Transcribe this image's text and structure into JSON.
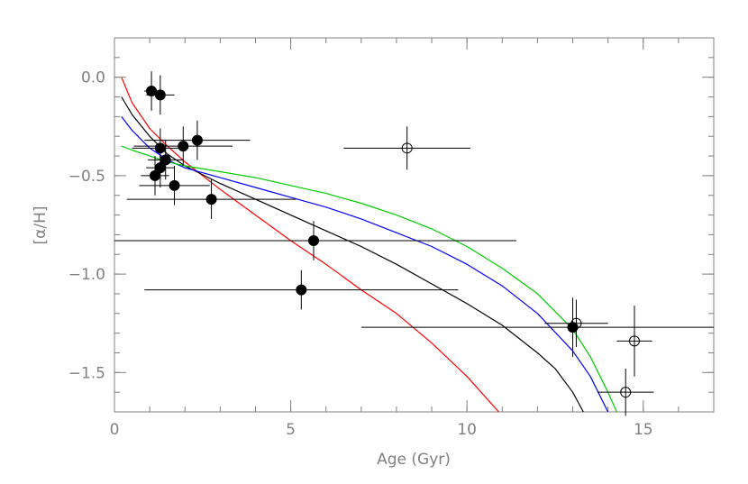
{
  "chart_data": {
    "type": "scatter",
    "xlabel": "Age (Gyr)",
    "ylabel": "[α/H]",
    "xlim": [
      0,
      17
    ],
    "ylim": [
      -1.7,
      0.2
    ],
    "xticks": [
      0,
      5,
      10,
      15
    ],
    "xtick_labels": [
      "0",
      "5",
      "10",
      "15"
    ],
    "yticks": [
      0.0,
      -0.5,
      -1.0,
      -1.5
    ],
    "ytick_labels": [
      "0.0",
      "−0.5",
      "−1.0",
      "−1.5"
    ],
    "grid": false,
    "series": [
      {
        "marker": "filled-circle",
        "color": "#000000",
        "points": [
          {
            "x": 1.05,
            "y": -0.07,
            "xerr": 0.2,
            "yerr": 0.1
          },
          {
            "x": 1.3,
            "y": -0.09,
            "xerr": 0.4,
            "yerr": 0.1
          },
          {
            "x": 1.3,
            "y": -0.36,
            "xerr": 0.8,
            "yerr": 0.1
          },
          {
            "x": 1.45,
            "y": -0.42,
            "xerr": 0.5,
            "yerr": 0.1
          },
          {
            "x": 1.3,
            "y": -0.46,
            "xerr": 0.4,
            "yerr": 0.1
          },
          {
            "x": 1.15,
            "y": -0.5,
            "xerr": 0.4,
            "yerr": 0.1
          },
          {
            "x": 1.7,
            "y": -0.55,
            "xerr": 1.0,
            "yerr": 0.1
          },
          {
            "x": 1.95,
            "y": -0.35,
            "xerr": 1.4,
            "yerr": 0.1
          },
          {
            "x": 2.35,
            "y": -0.32,
            "xerr": 1.5,
            "yerr": 0.1
          },
          {
            "x": 2.75,
            "y": -0.62,
            "xerr": 2.4,
            "yerr": 0.1
          },
          {
            "x": 5.65,
            "y": -0.83,
            "xerr": 5.75,
            "yerr": 0.1
          },
          {
            "x": 5.3,
            "y": -1.08,
            "xerr": 4.45,
            "yerr": 0.1
          },
          {
            "x": 13.0,
            "y": -1.27,
            "xerr": 6.0,
            "yerr": 0.15
          }
        ]
      },
      {
        "marker": "open-circle",
        "color": "#000000",
        "points": [
          {
            "x": 8.3,
            "y": -0.36,
            "xerr": 1.8,
            "yerr": 0.11
          },
          {
            "x": 13.1,
            "y": -1.25,
            "xerr": 0.9,
            "yerr": 0.12
          },
          {
            "x": 14.75,
            "y": -1.34,
            "xerr": 0.5,
            "yerr": 0.18
          },
          {
            "x": 14.5,
            "y": -1.6,
            "xerr": 0.8,
            "yerr": 0.12
          }
        ]
      }
    ],
    "curves": [
      {
        "color": "#ff0000",
        "x": [
          0.2,
          0.5,
          1.0,
          1.5,
          2.0,
          3.0,
          4.0,
          5.0,
          6.0,
          7.0,
          8.0,
          9.0,
          10.0,
          10.9
        ],
        "y": [
          0.0,
          -0.13,
          -0.26,
          -0.35,
          -0.43,
          -0.57,
          -0.7,
          -0.83,
          -0.95,
          -1.08,
          -1.2,
          -1.35,
          -1.52,
          -1.7
        ]
      },
      {
        "color": "#000000",
        "x": [
          0.2,
          0.5,
          1.0,
          1.5,
          2.0,
          3.0,
          4.0,
          5.0,
          6.0,
          7.0,
          8.0,
          9.0,
          10.0,
          11.0,
          12.0,
          12.5,
          13.0,
          13.3
        ],
        "y": [
          -0.1,
          -0.19,
          -0.3,
          -0.39,
          -0.45,
          -0.54,
          -0.62,
          -0.7,
          -0.78,
          -0.86,
          -0.95,
          -1.05,
          -1.15,
          -1.26,
          -1.4,
          -1.48,
          -1.6,
          -1.7
        ]
      },
      {
        "color": "#0000ff",
        "x": [
          0.2,
          0.5,
          1.0,
          1.5,
          2.0,
          3.0,
          4.0,
          5.0,
          6.0,
          7.0,
          8.0,
          9.0,
          10.0,
          11.0,
          12.0,
          13.0,
          13.5,
          14.0
        ],
        "y": [
          -0.2,
          -0.27,
          -0.36,
          -0.42,
          -0.46,
          -0.51,
          -0.56,
          -0.61,
          -0.66,
          -0.72,
          -0.79,
          -0.86,
          -0.95,
          -1.06,
          -1.2,
          -1.39,
          -1.52,
          -1.7
        ]
      },
      {
        "color": "#00cc00",
        "x": [
          0.2,
          0.5,
          1.0,
          1.5,
          2.0,
          3.0,
          4.0,
          5.0,
          6.0,
          7.0,
          8.0,
          9.0,
          10.0,
          11.0,
          12.0,
          13.0,
          13.5,
          14.0,
          14.25
        ],
        "y": [
          -0.35,
          -0.37,
          -0.4,
          -0.43,
          -0.45,
          -0.48,
          -0.51,
          -0.55,
          -0.59,
          -0.64,
          -0.7,
          -0.77,
          -0.86,
          -0.97,
          -1.1,
          -1.28,
          -1.42,
          -1.6,
          -1.7
        ]
      }
    ]
  }
}
